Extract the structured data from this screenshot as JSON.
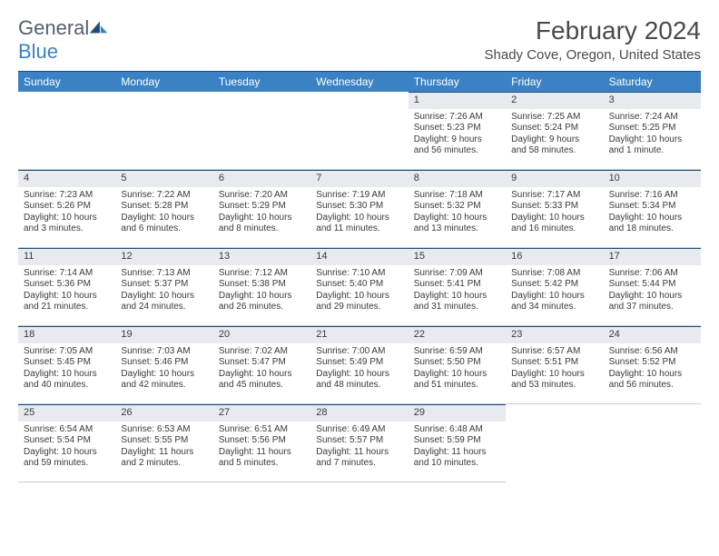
{
  "logo": {
    "text_gray": "General",
    "text_blue": "Blue"
  },
  "title": "February 2024",
  "location": "Shady Cove, Oregon, United States",
  "colors": {
    "header_bg": "#3b82c4",
    "header_text": "#ffffff",
    "daybar_bg": "#e7ebef",
    "rule": "#1d4e7a",
    "body_text": "#3a3a3a"
  },
  "weekdays": [
    "Sunday",
    "Monday",
    "Tuesday",
    "Wednesday",
    "Thursday",
    "Friday",
    "Saturday"
  ],
  "weeks": [
    [
      null,
      null,
      null,
      null,
      {
        "n": "1",
        "sr": "Sunrise: 7:26 AM",
        "ss": "Sunset: 5:23 PM",
        "d1": "Daylight: 9 hours",
        "d2": "and 56 minutes."
      },
      {
        "n": "2",
        "sr": "Sunrise: 7:25 AM",
        "ss": "Sunset: 5:24 PM",
        "d1": "Daylight: 9 hours",
        "d2": "and 58 minutes."
      },
      {
        "n": "3",
        "sr": "Sunrise: 7:24 AM",
        "ss": "Sunset: 5:25 PM",
        "d1": "Daylight: 10 hours",
        "d2": "and 1 minute."
      }
    ],
    [
      {
        "n": "4",
        "sr": "Sunrise: 7:23 AM",
        "ss": "Sunset: 5:26 PM",
        "d1": "Daylight: 10 hours",
        "d2": "and 3 minutes."
      },
      {
        "n": "5",
        "sr": "Sunrise: 7:22 AM",
        "ss": "Sunset: 5:28 PM",
        "d1": "Daylight: 10 hours",
        "d2": "and 6 minutes."
      },
      {
        "n": "6",
        "sr": "Sunrise: 7:20 AM",
        "ss": "Sunset: 5:29 PM",
        "d1": "Daylight: 10 hours",
        "d2": "and 8 minutes."
      },
      {
        "n": "7",
        "sr": "Sunrise: 7:19 AM",
        "ss": "Sunset: 5:30 PM",
        "d1": "Daylight: 10 hours",
        "d2": "and 11 minutes."
      },
      {
        "n": "8",
        "sr": "Sunrise: 7:18 AM",
        "ss": "Sunset: 5:32 PM",
        "d1": "Daylight: 10 hours",
        "d2": "and 13 minutes."
      },
      {
        "n": "9",
        "sr": "Sunrise: 7:17 AM",
        "ss": "Sunset: 5:33 PM",
        "d1": "Daylight: 10 hours",
        "d2": "and 16 minutes."
      },
      {
        "n": "10",
        "sr": "Sunrise: 7:16 AM",
        "ss": "Sunset: 5:34 PM",
        "d1": "Daylight: 10 hours",
        "d2": "and 18 minutes."
      }
    ],
    [
      {
        "n": "11",
        "sr": "Sunrise: 7:14 AM",
        "ss": "Sunset: 5:36 PM",
        "d1": "Daylight: 10 hours",
        "d2": "and 21 minutes."
      },
      {
        "n": "12",
        "sr": "Sunrise: 7:13 AM",
        "ss": "Sunset: 5:37 PM",
        "d1": "Daylight: 10 hours",
        "d2": "and 24 minutes."
      },
      {
        "n": "13",
        "sr": "Sunrise: 7:12 AM",
        "ss": "Sunset: 5:38 PM",
        "d1": "Daylight: 10 hours",
        "d2": "and 26 minutes."
      },
      {
        "n": "14",
        "sr": "Sunrise: 7:10 AM",
        "ss": "Sunset: 5:40 PM",
        "d1": "Daylight: 10 hours",
        "d2": "and 29 minutes."
      },
      {
        "n": "15",
        "sr": "Sunrise: 7:09 AM",
        "ss": "Sunset: 5:41 PM",
        "d1": "Daylight: 10 hours",
        "d2": "and 31 minutes."
      },
      {
        "n": "16",
        "sr": "Sunrise: 7:08 AM",
        "ss": "Sunset: 5:42 PM",
        "d1": "Daylight: 10 hours",
        "d2": "and 34 minutes."
      },
      {
        "n": "17",
        "sr": "Sunrise: 7:06 AM",
        "ss": "Sunset: 5:44 PM",
        "d1": "Daylight: 10 hours",
        "d2": "and 37 minutes."
      }
    ],
    [
      {
        "n": "18",
        "sr": "Sunrise: 7:05 AM",
        "ss": "Sunset: 5:45 PM",
        "d1": "Daylight: 10 hours",
        "d2": "and 40 minutes."
      },
      {
        "n": "19",
        "sr": "Sunrise: 7:03 AM",
        "ss": "Sunset: 5:46 PM",
        "d1": "Daylight: 10 hours",
        "d2": "and 42 minutes."
      },
      {
        "n": "20",
        "sr": "Sunrise: 7:02 AM",
        "ss": "Sunset: 5:47 PM",
        "d1": "Daylight: 10 hours",
        "d2": "and 45 minutes."
      },
      {
        "n": "21",
        "sr": "Sunrise: 7:00 AM",
        "ss": "Sunset: 5:49 PM",
        "d1": "Daylight: 10 hours",
        "d2": "and 48 minutes."
      },
      {
        "n": "22",
        "sr": "Sunrise: 6:59 AM",
        "ss": "Sunset: 5:50 PM",
        "d1": "Daylight: 10 hours",
        "d2": "and 51 minutes."
      },
      {
        "n": "23",
        "sr": "Sunrise: 6:57 AM",
        "ss": "Sunset: 5:51 PM",
        "d1": "Daylight: 10 hours",
        "d2": "and 53 minutes."
      },
      {
        "n": "24",
        "sr": "Sunrise: 6:56 AM",
        "ss": "Sunset: 5:52 PM",
        "d1": "Daylight: 10 hours",
        "d2": "and 56 minutes."
      }
    ],
    [
      {
        "n": "25",
        "sr": "Sunrise: 6:54 AM",
        "ss": "Sunset: 5:54 PM",
        "d1": "Daylight: 10 hours",
        "d2": "and 59 minutes."
      },
      {
        "n": "26",
        "sr": "Sunrise: 6:53 AM",
        "ss": "Sunset: 5:55 PM",
        "d1": "Daylight: 11 hours",
        "d2": "and 2 minutes."
      },
      {
        "n": "27",
        "sr": "Sunrise: 6:51 AM",
        "ss": "Sunset: 5:56 PM",
        "d1": "Daylight: 11 hours",
        "d2": "and 5 minutes."
      },
      {
        "n": "28",
        "sr": "Sunrise: 6:49 AM",
        "ss": "Sunset: 5:57 PM",
        "d1": "Daylight: 11 hours",
        "d2": "and 7 minutes."
      },
      {
        "n": "29",
        "sr": "Sunrise: 6:48 AM",
        "ss": "Sunset: 5:59 PM",
        "d1": "Daylight: 11 hours",
        "d2": "and 10 minutes."
      },
      null,
      null
    ]
  ]
}
